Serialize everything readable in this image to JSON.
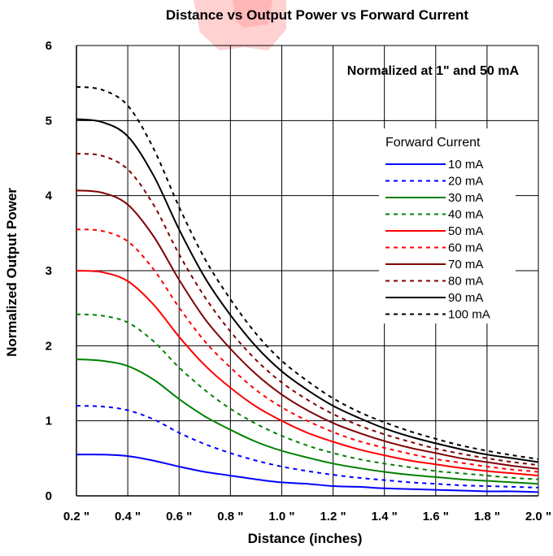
{
  "chart_data": {
    "type": "line",
    "title": "Distance vs Output Power vs Forward Current",
    "xlabel": "Distance (inches)",
    "ylabel": "Normalized Output Power",
    "annotation": "Normalized at 1\" and 50 mA",
    "legend_title": "Forward Current",
    "legend_position": "right",
    "grid": true,
    "xlim": [
      0.2,
      2.0
    ],
    "ylim": [
      0,
      6
    ],
    "x_ticks": [
      0.2,
      0.4,
      0.6,
      0.8,
      1.0,
      1.2,
      1.4,
      1.6,
      1.8,
      2.0
    ],
    "x_tick_labels": [
      "0.2 \"",
      "0.4 \"",
      "0.6 \"",
      "0.8 \"",
      "1.0 \"",
      "1.2 \"",
      "1.4 \"",
      "1.6 \"",
      "1.8 \"",
      "2.0 \""
    ],
    "y_ticks": [
      0,
      1,
      2,
      3,
      4,
      5,
      6
    ],
    "y_tick_labels": [
      "0",
      "1",
      "2",
      "3",
      "4",
      "5",
      "6"
    ],
    "x": [
      0.2,
      0.3,
      0.4,
      0.5,
      0.6,
      0.7,
      0.8,
      0.9,
      1.0,
      1.1,
      1.2,
      1.3,
      1.4,
      1.5,
      1.6,
      1.7,
      1.8,
      1.9,
      2.0
    ],
    "series": [
      {
        "name": "10 mA",
        "color": "#0000ff",
        "dash": "solid",
        "values": [
          0.55,
          0.55,
          0.53,
          0.47,
          0.39,
          0.32,
          0.27,
          0.22,
          0.18,
          0.16,
          0.13,
          0.12,
          0.1,
          0.09,
          0.08,
          0.07,
          0.06,
          0.06,
          0.05
        ]
      },
      {
        "name": "20 mA",
        "color": "#0000ff",
        "dash": "dotted",
        "values": [
          1.2,
          1.19,
          1.14,
          1.02,
          0.84,
          0.69,
          0.57,
          0.47,
          0.39,
          0.33,
          0.28,
          0.24,
          0.21,
          0.18,
          0.16,
          0.14,
          0.13,
          0.12,
          0.11
        ]
      },
      {
        "name": "30 mA",
        "color": "#008000",
        "dash": "solid",
        "values": [
          1.82,
          1.8,
          1.73,
          1.55,
          1.29,
          1.06,
          0.88,
          0.72,
          0.6,
          0.51,
          0.43,
          0.37,
          0.32,
          0.28,
          0.25,
          0.22,
          0.2,
          0.18,
          0.16
        ]
      },
      {
        "name": "40 mA",
        "color": "#008000",
        "dash": "dotted",
        "values": [
          2.42,
          2.4,
          2.31,
          2.06,
          1.71,
          1.41,
          1.16,
          0.96,
          0.8,
          0.67,
          0.57,
          0.49,
          0.43,
          0.38,
          0.33,
          0.3,
          0.27,
          0.24,
          0.22
        ]
      },
      {
        "name": "50 mA",
        "color": "#ff0000",
        "dash": "solid",
        "values": [
          3.0,
          2.98,
          2.86,
          2.55,
          2.12,
          1.74,
          1.44,
          1.19,
          1.0,
          0.84,
          0.72,
          0.62,
          0.54,
          0.47,
          0.42,
          0.37,
          0.33,
          0.3,
          0.27
        ]
      },
      {
        "name": "60 mA",
        "color": "#ff0000",
        "dash": "dotted",
        "values": [
          3.55,
          3.53,
          3.39,
          3.02,
          2.51,
          2.06,
          1.71,
          1.41,
          1.18,
          1.0,
          0.85,
          0.73,
          0.64,
          0.56,
          0.49,
          0.44,
          0.39,
          0.35,
          0.32
        ]
      },
      {
        "name": "70 mA",
        "color": "#800000",
        "dash": "solid",
        "values": [
          4.07,
          4.04,
          3.88,
          3.46,
          2.88,
          2.36,
          1.96,
          1.62,
          1.35,
          1.14,
          0.97,
          0.84,
          0.73,
          0.64,
          0.57,
          0.5,
          0.45,
          0.4,
          0.36
        ]
      },
      {
        "name": "80 mA",
        "color": "#800000",
        "dash": "dotted",
        "values": [
          4.56,
          4.53,
          4.35,
          3.88,
          3.22,
          2.65,
          2.19,
          1.81,
          1.51,
          1.28,
          1.09,
          0.94,
          0.82,
          0.72,
          0.63,
          0.56,
          0.5,
          0.45,
          0.41
        ]
      },
      {
        "name": "90 mA",
        "color": "#000000",
        "dash": "solid",
        "values": [
          5.02,
          4.98,
          4.79,
          4.27,
          3.55,
          2.91,
          2.41,
          1.99,
          1.66,
          1.41,
          1.2,
          1.04,
          0.9,
          0.79,
          0.7,
          0.62,
          0.55,
          0.5,
          0.45
        ]
      },
      {
        "name": "100 mA",
        "color": "#000000",
        "dash": "dotted",
        "values": [
          5.45,
          5.41,
          5.2,
          4.63,
          3.85,
          3.16,
          2.62,
          2.16,
          1.8,
          1.53,
          1.3,
          1.12,
          0.98,
          0.86,
          0.76,
          0.67,
          0.6,
          0.54,
          0.49
        ]
      }
    ]
  }
}
